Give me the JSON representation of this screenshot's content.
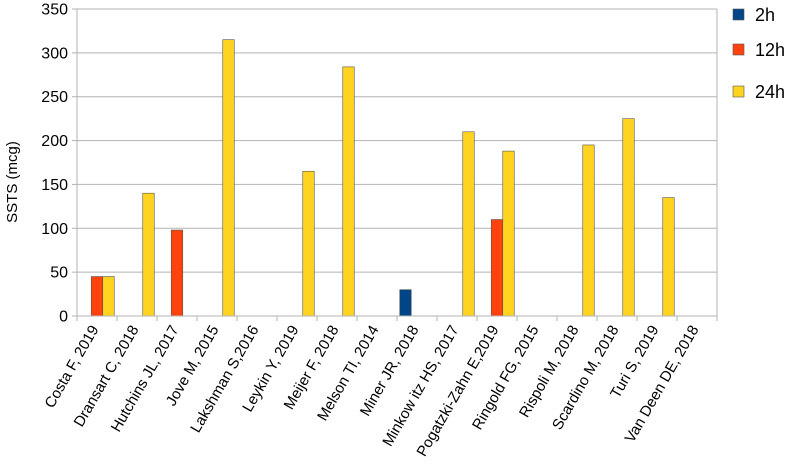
{
  "chart_data": {
    "type": "bar",
    "title": "",
    "xlabel": "",
    "ylabel": "SSTS (mcg)",
    "ylim": [
      0,
      350
    ],
    "yticks": [
      0,
      50,
      100,
      150,
      200,
      250,
      300,
      350
    ],
    "grid": true,
    "legend_position": "right",
    "categories": [
      "Costa F, 2019",
      "Dransart C, 2018",
      "Hutchins JL, 2017",
      "Jove M, 2015",
      "Lakshman S,2016",
      "Leykin Y, 2019",
      "Meijer F, 2018",
      "Melson TI, 2014",
      "Miner JR, 2018",
      "Minkow itz HS, 2017",
      "Pogatzki-Zahn E,2019",
      "Ringold FG, 2015",
      "Rispoli M, 2018",
      "Scardino M, 2018",
      "Turi S, 2019",
      "Van Deen DE, 2018"
    ],
    "series": [
      {
        "name": "2h",
        "color": "#004586",
        "values": [
          null,
          null,
          null,
          null,
          null,
          null,
          null,
          null,
          30,
          null,
          null,
          null,
          null,
          null,
          null,
          null
        ]
      },
      {
        "name": "12h",
        "color": "#ff420e",
        "values": [
          45,
          null,
          98,
          null,
          null,
          null,
          null,
          null,
          null,
          null,
          110,
          null,
          null,
          null,
          null,
          null
        ]
      },
      {
        "name": "24h",
        "color": "#ffd320",
        "values": [
          45,
          140,
          null,
          315,
          null,
          165,
          284,
          null,
          null,
          210,
          188,
          null,
          195,
          225,
          135,
          null
        ]
      }
    ]
  }
}
